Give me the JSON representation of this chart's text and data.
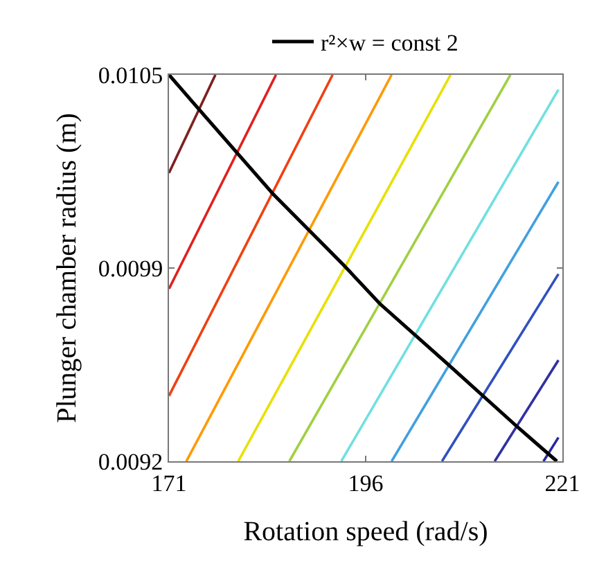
{
  "chart_data": {
    "type": "line",
    "xlabel": "Rotation speed (rad/s)",
    "ylabel": "Plunger chamber radius (m)",
    "xlim": [
      171,
      221
    ],
    "xticks": [
      171,
      196,
      221
    ],
    "ylim": [
      0.0092,
      0.0105
    ],
    "yticks": [
      0.0092,
      {
        "value": 0.00985,
        "label": "0.0099"
      },
      0.0105
    ],
    "legend": "top",
    "series": [
      {
        "color": "#7f1f1f",
        "x": [
          171,
          176.9
        ],
        "values": [
          0.01017,
          0.0105
        ]
      },
      {
        "color": "#e02020",
        "x": [
          171,
          184.6
        ],
        "values": [
          0.00978,
          0.0105
        ]
      },
      {
        "color": "#f04010",
        "x": [
          171,
          191.8
        ],
        "values": [
          0.00942,
          0.0105
        ]
      },
      {
        "color": "#ff9900",
        "x": [
          173.2,
          199.3
        ],
        "values": [
          0.0092,
          0.0105
        ]
      },
      {
        "color": "#e8e000",
        "x": [
          179.8,
          206.8
        ],
        "values": [
          0.0092,
          0.0105
        ]
      },
      {
        "color": "#a0d040",
        "x": [
          186.3,
          214.4
        ],
        "values": [
          0.0092,
          0.0105
        ]
      },
      {
        "color": "#70e0e0",
        "x": [
          192.9,
          220.5
        ],
        "values": [
          0.0092,
          0.01045
        ]
      },
      {
        "color": "#40a0e0",
        "x": [
          199.3,
          220.5
        ],
        "values": [
          0.0092,
          0.01014
        ]
      },
      {
        "color": "#3050c0",
        "x": [
          205.7,
          220.5
        ],
        "values": [
          0.0092,
          0.00983
        ]
      },
      {
        "color": "#3030a0",
        "x": [
          212.4,
          220.5
        ],
        "values": [
          0.0092,
          0.00954
        ]
      },
      {
        "color": "#2828a0",
        "x": [
          218.6,
          220.5
        ],
        "values": [
          0.0092,
          0.00928
        ]
      },
      {
        "name": "r²×w = const 2",
        "color": "#000000",
        "x": [
          171,
          174.6,
          184.2,
          193.2,
          197.8,
          206.3,
          215.1,
          220.3
        ],
        "values": [
          0.0105,
          0.01039,
          0.0101,
          0.00986,
          0.00973,
          0.00953,
          0.00932,
          0.0092
        ]
      }
    ]
  }
}
